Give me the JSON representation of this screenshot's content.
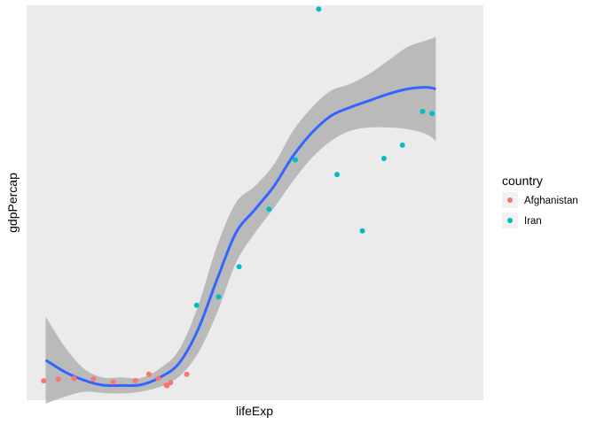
{
  "chart_data": {
    "type": "scatter",
    "xlabel": "lifeExp",
    "ylabel": "gdpPercap",
    "xlim": [
      27.0,
      75.0
    ],
    "ylim": [
      200,
      12000
    ],
    "x_tick_labels_shown": false,
    "y_tick_labels_shown": false,
    "grid": false,
    "legend": {
      "title": "country",
      "position": "right",
      "entries": [
        {
          "name": "Afghanistan",
          "color": "#F8766D"
        },
        {
          "name": "Iran",
          "color": "#00BFC4"
        }
      ]
    },
    "series": [
      {
        "name": "Afghanistan",
        "color": "#F8766D",
        "points": [
          {
            "x": 28.8,
            "y": 779
          },
          {
            "x": 30.33,
            "y": 821
          },
          {
            "x": 31.99,
            "y": 853
          },
          {
            "x": 34.02,
            "y": 836
          },
          {
            "x": 36.09,
            "y": 740
          },
          {
            "x": 38.44,
            "y": 786
          },
          {
            "x": 39.85,
            "y": 978
          },
          {
            "x": 40.82,
            "y": 852
          },
          {
            "x": 41.67,
            "y": 649
          },
          {
            "x": 41.76,
            "y": 635
          },
          {
            "x": 42.13,
            "y": 727
          },
          {
            "x": 43.83,
            "y": 975
          }
        ]
      },
      {
        "name": "Iran",
        "color": "#00BFC4",
        "points": [
          {
            "x": 44.87,
            "y": 3035
          },
          {
            "x": 47.18,
            "y": 3291
          },
          {
            "x": 49.33,
            "y": 4187
          },
          {
            "x": 52.47,
            "y": 5907
          },
          {
            "x": 55.23,
            "y": 7383
          },
          {
            "x": 57.7,
            "y": 11889
          },
          {
            "x": 59.62,
            "y": 6943
          },
          {
            "x": 62.29,
            "y": 5262
          },
          {
            "x": 64.55,
            "y": 7424
          },
          {
            "x": 66.49,
            "y": 7823
          },
          {
            "x": 68.62,
            "y": 8829
          },
          {
            "x": 69.61,
            "y": 8768
          }
        ]
      }
    ],
    "smooth": {
      "method": "loess",
      "color": "#3366FF",
      "band_color": "#999999",
      "band_fill_opacity": 0.6,
      "x": [
        29.0,
        31.0,
        33.0,
        35.0,
        37.0,
        39.0,
        41.0,
        43.0,
        45.0,
        47.0,
        49.0,
        51.0,
        53.0,
        55.0,
        57.0,
        59.0,
        61.0,
        63.0,
        65.0,
        67.0,
        69.0,
        70.0
      ],
      "y": [
        1400,
        1050,
        800,
        650,
        640,
        660,
        880,
        1300,
        2300,
        3800,
        5200,
        5900,
        6600,
        7500,
        8200,
        8700,
        8950,
        9150,
        9350,
        9500,
        9550,
        9500
      ],
      "ymin": [
        100,
        300,
        450,
        420,
        400,
        460,
        600,
        900,
        1600,
        2800,
        4300,
        5200,
        5950,
        6750,
        7450,
        7950,
        8250,
        8350,
        8350,
        8300,
        8150,
        7950
      ],
      "ymax": [
        2700,
        1800,
        1150,
        880,
        880,
        870,
        1150,
        1700,
        3000,
        4800,
        6100,
        6600,
        7250,
        8250,
        8950,
        9450,
        9650,
        9950,
        10350,
        10750,
        10950,
        11050
      ]
    }
  }
}
